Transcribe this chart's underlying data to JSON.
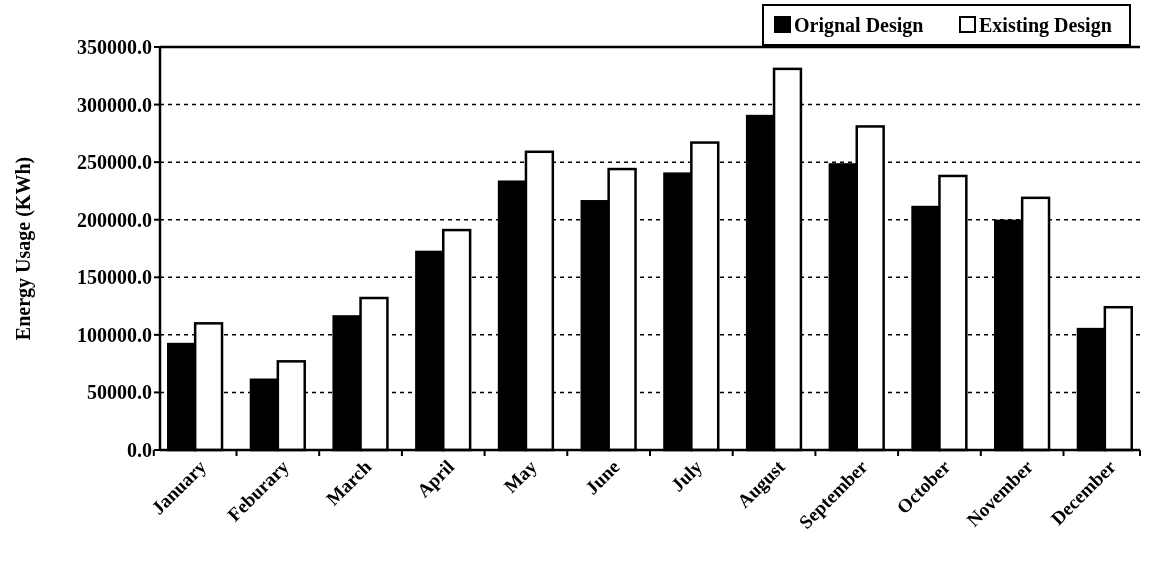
{
  "chart_data": {
    "type": "bar",
    "ylabel": "Energy Usage (KWh)",
    "categories": [
      "January",
      "Feburary",
      "March",
      "April",
      "May",
      "June",
      "July",
      "August",
      "September",
      "October",
      "November",
      "December"
    ],
    "series": [
      {
        "name": "Orignal Design",
        "color": "#000000",
        "values": [
          92000,
          61000,
          116000,
          172000,
          233000,
          216000,
          240000,
          290000,
          248000,
          211000,
          199000,
          105000
        ]
      },
      {
        "name": "Existing Design",
        "color": "#ffffff",
        "values": [
          110000,
          77000,
          132000,
          191000,
          259000,
          244000,
          267000,
          331000,
          281000,
          238000,
          219000,
          124000
        ]
      }
    ],
    "ylim": [
      0,
      350000
    ],
    "yticks": [
      {
        "value": 0,
        "label": "0.0"
      },
      {
        "value": 50000,
        "label": "50000.0"
      },
      {
        "value": 100000,
        "label": "100000.0"
      },
      {
        "value": 150000,
        "label": "150000.0"
      },
      {
        "value": 200000,
        "label": "200000.0"
      },
      {
        "value": 250000,
        "label": "250000.0"
      },
      {
        "value": 300000,
        "label": "300000.0"
      },
      {
        "value": 350000,
        "label": "350000.0"
      }
    ],
    "grid": "y",
    "legend": "top right"
  }
}
